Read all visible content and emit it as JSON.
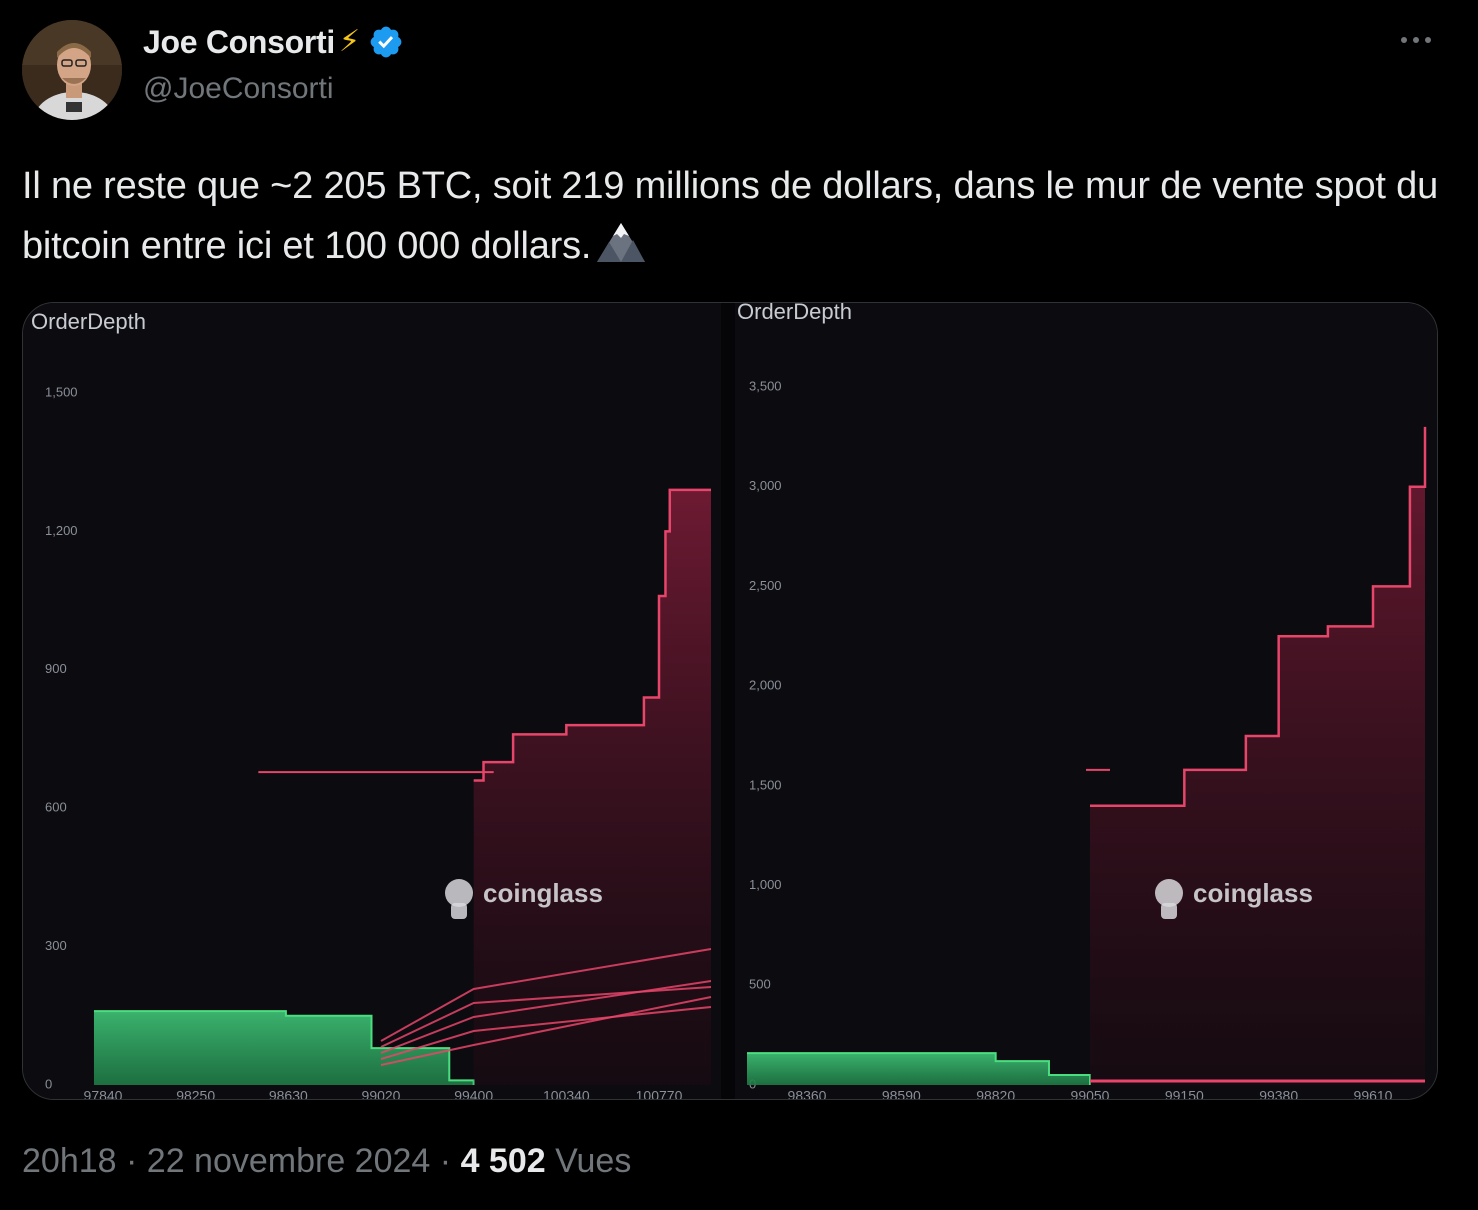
{
  "author": {
    "name": "Joe Consorti",
    "badge_emoji": "⚡",
    "handle": "@JoeConsorti",
    "verified": true
  },
  "tweet": {
    "text": "Il ne reste que ~2 205 BTC, soit 219 millions de dollars, dans le mur de vente spot du bitcoin entre ici et 100 000 dollars.",
    "emoji": "mountain-icon"
  },
  "footer": {
    "time": "20h18",
    "separator": "·",
    "date": "22 novembre 2024",
    "views_count": "4 502",
    "views_label": "Vues"
  },
  "colors": {
    "bid": "#4ade80",
    "ask": "#e8456a",
    "verified": "#1d9bf0"
  },
  "chart_data": [
    {
      "type": "area",
      "title": "OrderDepth",
      "watermark": "coinglass",
      "x_ticks": [
        "97840",
        "98250",
        "98630",
        "99020",
        "99400",
        "100340",
        "100770"
      ],
      "y_ticks": [
        "1,500",
        "1,200",
        "900",
        "600",
        "300",
        "0"
      ],
      "ylim": [
        0,
        1500
      ],
      "series": [
        {
          "side": "bid",
          "x": [
            97800,
            98620,
            98980,
            99300,
            99400
          ],
          "y": [
            160,
            150,
            80,
            10,
            0
          ]
        },
        {
          "side": "ask",
          "x": [
            99400,
            99500,
            99800,
            100340,
            100700,
            100770,
            100800,
            100820
          ],
          "y": [
            660,
            700,
            760,
            780,
            840,
            1060,
            1200,
            1290
          ]
        }
      ]
    },
    {
      "type": "area",
      "title": "OrderDepth",
      "watermark": "coinglass",
      "x_ticks": [
        "98360",
        "98590",
        "98820",
        "99050",
        "99150",
        "99380",
        "99610"
      ],
      "y_ticks": [
        "3,500",
        "3,000",
        "2,500",
        "2,000",
        "1,500",
        "1,000",
        "500",
        "0"
      ],
      "ylim": [
        0,
        3500
      ],
      "series": [
        {
          "side": "bid",
          "x": [
            98200,
            98820,
            98950,
            99050
          ],
          "y": [
            160,
            120,
            50,
            0
          ]
        },
        {
          "side": "ask",
          "x": [
            99050,
            99150,
            99300,
            99380,
            99500,
            99610,
            99700,
            99800
          ],
          "y": [
            1400,
            1580,
            1750,
            2250,
            2300,
            2500,
            3000,
            3300
          ]
        }
      ]
    }
  ]
}
